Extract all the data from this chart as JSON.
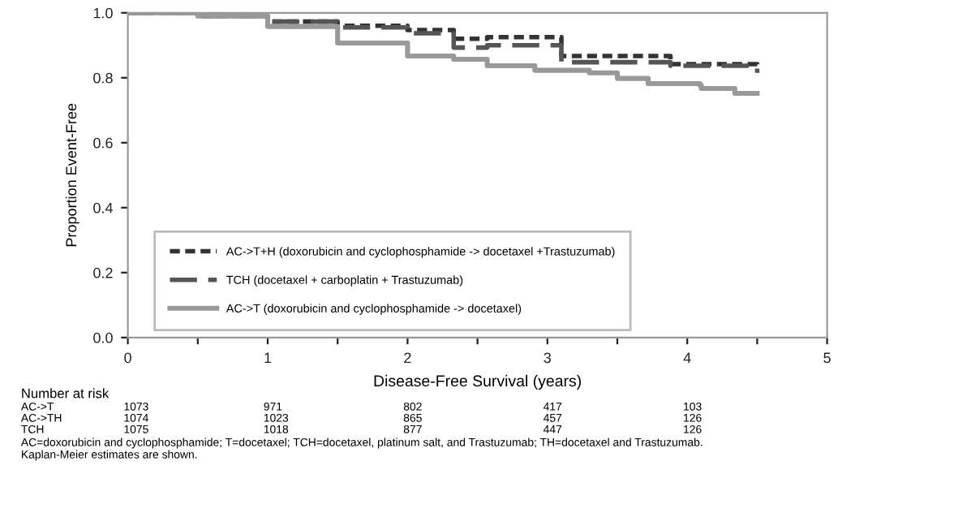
{
  "chart_data": {
    "type": "step",
    "xlabel": "Disease-Free Survival (years)",
    "ylabel": "Proportion Event-Free",
    "xlim": [
      0,
      5
    ],
    "xticks": [
      0,
      {
        "value": 0.5,
        "label": null
      },
      1,
      {
        "value": 1.5,
        "label": null
      },
      2,
      {
        "value": 2.5,
        "label": null
      },
      3,
      {
        "value": 3.5,
        "label": null
      },
      4,
      {
        "value": 4.5,
        "label": null
      },
      5
    ],
    "ylim": [
      0,
      1
    ],
    "yticks": [
      {
        "value": 0,
        "label": "0.0"
      },
      0.2,
      0.4,
      0.6,
      0.8,
      {
        "value": 1,
        "label": "1.0"
      }
    ],
    "grid": false,
    "legend": "bottom left",
    "series": [
      {
        "name": "AC->T+H (doxorubicin and cyclophosphamide -> docetaxel +Trastuzumab)",
        "color": "#333333",
        "line_style": "dotted",
        "x": [
          0,
          0.5,
          1,
          1.5,
          2,
          2.33,
          2.57,
          3.1,
          3.88,
          4.5
        ],
        "values": [
          1.0,
          0.99,
          0.973,
          0.96,
          0.947,
          0.92,
          0.925,
          0.867,
          0.842,
          0.833
        ]
      },
      {
        "name": "TCH (docetaxel + carboplatin + Trastuzumab)",
        "color": "#555555",
        "line_style": "dashed",
        "x": [
          0,
          0.5,
          1,
          1.5,
          2,
          2.33,
          2.57,
          3.1,
          3.88,
          4.5
        ],
        "values": [
          1.0,
          0.99,
          0.973,
          0.955,
          0.937,
          0.893,
          0.9,
          0.848,
          0.837,
          0.815
        ]
      },
      {
        "name": "AC->T (doxorubicin and cyclophosphamide -> docetaxel)",
        "color": "#999999",
        "line_style": "solid",
        "x": [
          0,
          0.5,
          1,
          1.5,
          2,
          2.33,
          2.57,
          2.91,
          3.3,
          3.5,
          3.72,
          4.09,
          4.1,
          4.34,
          4.5
        ],
        "values": [
          1.0,
          0.99,
          0.958,
          0.907,
          0.867,
          0.857,
          0.837,
          0.823,
          0.815,
          0.798,
          0.782,
          0.777,
          0.767,
          0.752,
          0.752
        ]
      }
    ],
    "annotations": [
      "Number at risk",
      "AC->T",
      "1073",
      "971",
      "802",
      "417",
      "103",
      "AC->TH",
      "1074",
      "1023",
      "865",
      "457",
      "126",
      "TCH",
      "1075",
      "1018",
      "877",
      "447",
      "126",
      "AC=doxorubicin and cyclophosphamide; T=docetaxel; TCH=docetaxel, platinum salt, and Trastuzumab; TH=docetaxel and Trastuzumab.",
      "Kaplan-Meier estimates are shown."
    ]
  }
}
